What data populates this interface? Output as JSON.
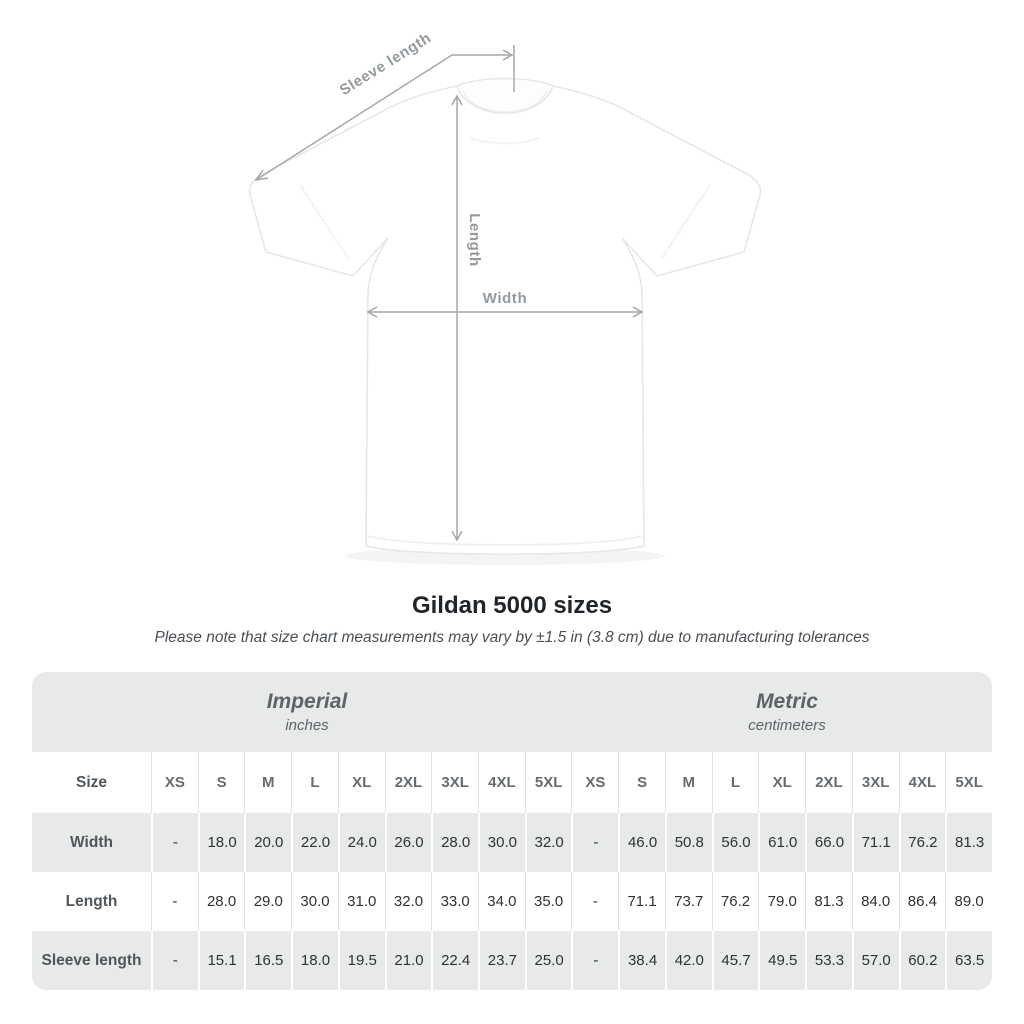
{
  "title": "Gildan 5000 sizes",
  "subtitle": "Please note that size chart measurements may vary by ±1.5 in (3.8 cm) due to manufacturing tolerances",
  "diagram": {
    "labels": {
      "sleeve_length": "Sleeve length",
      "length": "Length",
      "width": "Width"
    }
  },
  "colors": {
    "band_gray": "#e8e9e9",
    "annotation_gray": "#a3a8ab",
    "annotation_text": "#94999d",
    "value_text": "#2e3337",
    "label_text": "#50565b",
    "title_text": "#212529"
  },
  "chart_data": {
    "type": "table",
    "title": "Gildan 5000 sizes",
    "note": "Please note that size chart measurements may vary by ±1.5 in (3.8 cm) due to manufacturing tolerances",
    "row_header": "Size",
    "sizes": [
      "XS",
      "S",
      "M",
      "L",
      "XL",
      "2XL",
      "3XL",
      "4XL",
      "5XL"
    ],
    "column_groups": [
      {
        "label": "Imperial",
        "unit": "inches"
      },
      {
        "label": "Metric",
        "unit": "centimeters"
      }
    ],
    "rows": [
      {
        "label": "Width",
        "imperial": [
          "-",
          "18.0",
          "20.0",
          "22.0",
          "24.0",
          "26.0",
          "28.0",
          "30.0",
          "32.0"
        ],
        "metric": [
          "-",
          "46.0",
          "50.8",
          "56.0",
          "61.0",
          "66.0",
          "71.1",
          "76.2",
          "81.3"
        ]
      },
      {
        "label": "Length",
        "imperial": [
          "-",
          "28.0",
          "29.0",
          "30.0",
          "31.0",
          "32.0",
          "33.0",
          "34.0",
          "35.0"
        ],
        "metric": [
          "-",
          "71.1",
          "73.7",
          "76.2",
          "79.0",
          "81.3",
          "84.0",
          "86.4",
          "89.0"
        ]
      },
      {
        "label": "Sleeve length",
        "imperial": [
          "-",
          "15.1",
          "16.5",
          "18.0",
          "19.5",
          "21.0",
          "22.4",
          "23.7",
          "25.0"
        ],
        "metric": [
          "-",
          "38.4",
          "42.0",
          "45.7",
          "49.5",
          "53.3",
          "57.0",
          "60.2",
          "63.5"
        ]
      }
    ]
  }
}
